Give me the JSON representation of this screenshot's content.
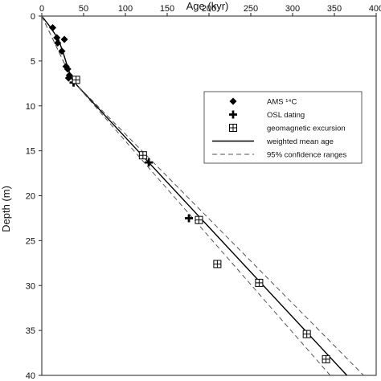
{
  "chart_data": {
    "type": "scatter",
    "xlabel": "Age (kyr)",
    "ylabel": "Depth (m)",
    "xlim": [
      0,
      400
    ],
    "ylim": [
      0,
      40
    ],
    "x_axis_position": "top",
    "y_axis_inverted": true,
    "grid": false,
    "legend_position": "right-center",
    "x_ticks": [
      "0",
      "50",
      "100",
      "150",
      "200",
      "250",
      "300",
      "350",
      "400"
    ],
    "y_ticks": [
      "0",
      "5",
      "10",
      "15",
      "20",
      "25",
      "30",
      "35",
      "40"
    ],
    "legend": [
      {
        "label": "AMS ¹⁴C",
        "marker": "diamond"
      },
      {
        "label": "OSL dating",
        "marker": "plus"
      },
      {
        "label": "geomagnetic excursion",
        "marker": "boxed-plus"
      },
      {
        "label": "weighted mean age",
        "marker": "solid-line"
      },
      {
        "label": "95% confidence ranges",
        "marker": "dashed-line"
      }
    ],
    "series": [
      {
        "marker": "diamond",
        "points": [
          {
            "x": 13,
            "y": 1.3
          },
          {
            "x": 18,
            "y": 2.4
          },
          {
            "x": 27,
            "y": 2.6
          },
          {
            "x": 19,
            "y": 3.0
          },
          {
            "x": 24,
            "y": 3.9
          },
          {
            "x": 29,
            "y": 5.6
          },
          {
            "x": 31,
            "y": 5.9
          },
          {
            "x": 33,
            "y": 6.6
          },
          {
            "x": 32,
            "y": 6.9
          }
        ]
      },
      {
        "marker": "plus",
        "points": [
          {
            "x": 38,
            "y": 7.4
          },
          {
            "x": 128,
            "y": 16.3
          },
          {
            "x": 176,
            "y": 22.5
          }
        ]
      },
      {
        "marker": "boxed-plus",
        "points": [
          {
            "x": 41,
            "y": 7.1
          },
          {
            "x": 121,
            "y": 15.5
          },
          {
            "x": 188,
            "y": 22.7
          },
          {
            "x": 210,
            "y": 27.6
          },
          {
            "x": 260,
            "y": 29.7
          },
          {
            "x": 317,
            "y": 35.4
          },
          {
            "x": 340,
            "y": 38.2
          }
        ]
      },
      {
        "marker": "solid-line",
        "points": [
          {
            "x": 0,
            "y": 0
          },
          {
            "x": 10,
            "y": 1.2
          },
          {
            "x": 20,
            "y": 2.6
          },
          {
            "x": 26,
            "y": 4.2
          },
          {
            "x": 32,
            "y": 6.0
          },
          {
            "x": 37,
            "y": 7.2
          },
          {
            "x": 365,
            "y": 40
          }
        ]
      },
      {
        "marker": "dashed-line",
        "points": [
          {
            "x": 0,
            "y": 0
          },
          {
            "x": 37,
            "y": 7.2
          },
          {
            "x": 345,
            "y": 40
          }
        ]
      },
      {
        "marker": "dashed-line",
        "points": [
          {
            "x": 0,
            "y": 0
          },
          {
            "x": 37,
            "y": 7.2
          },
          {
            "x": 385,
            "y": 40
          }
        ]
      }
    ]
  }
}
